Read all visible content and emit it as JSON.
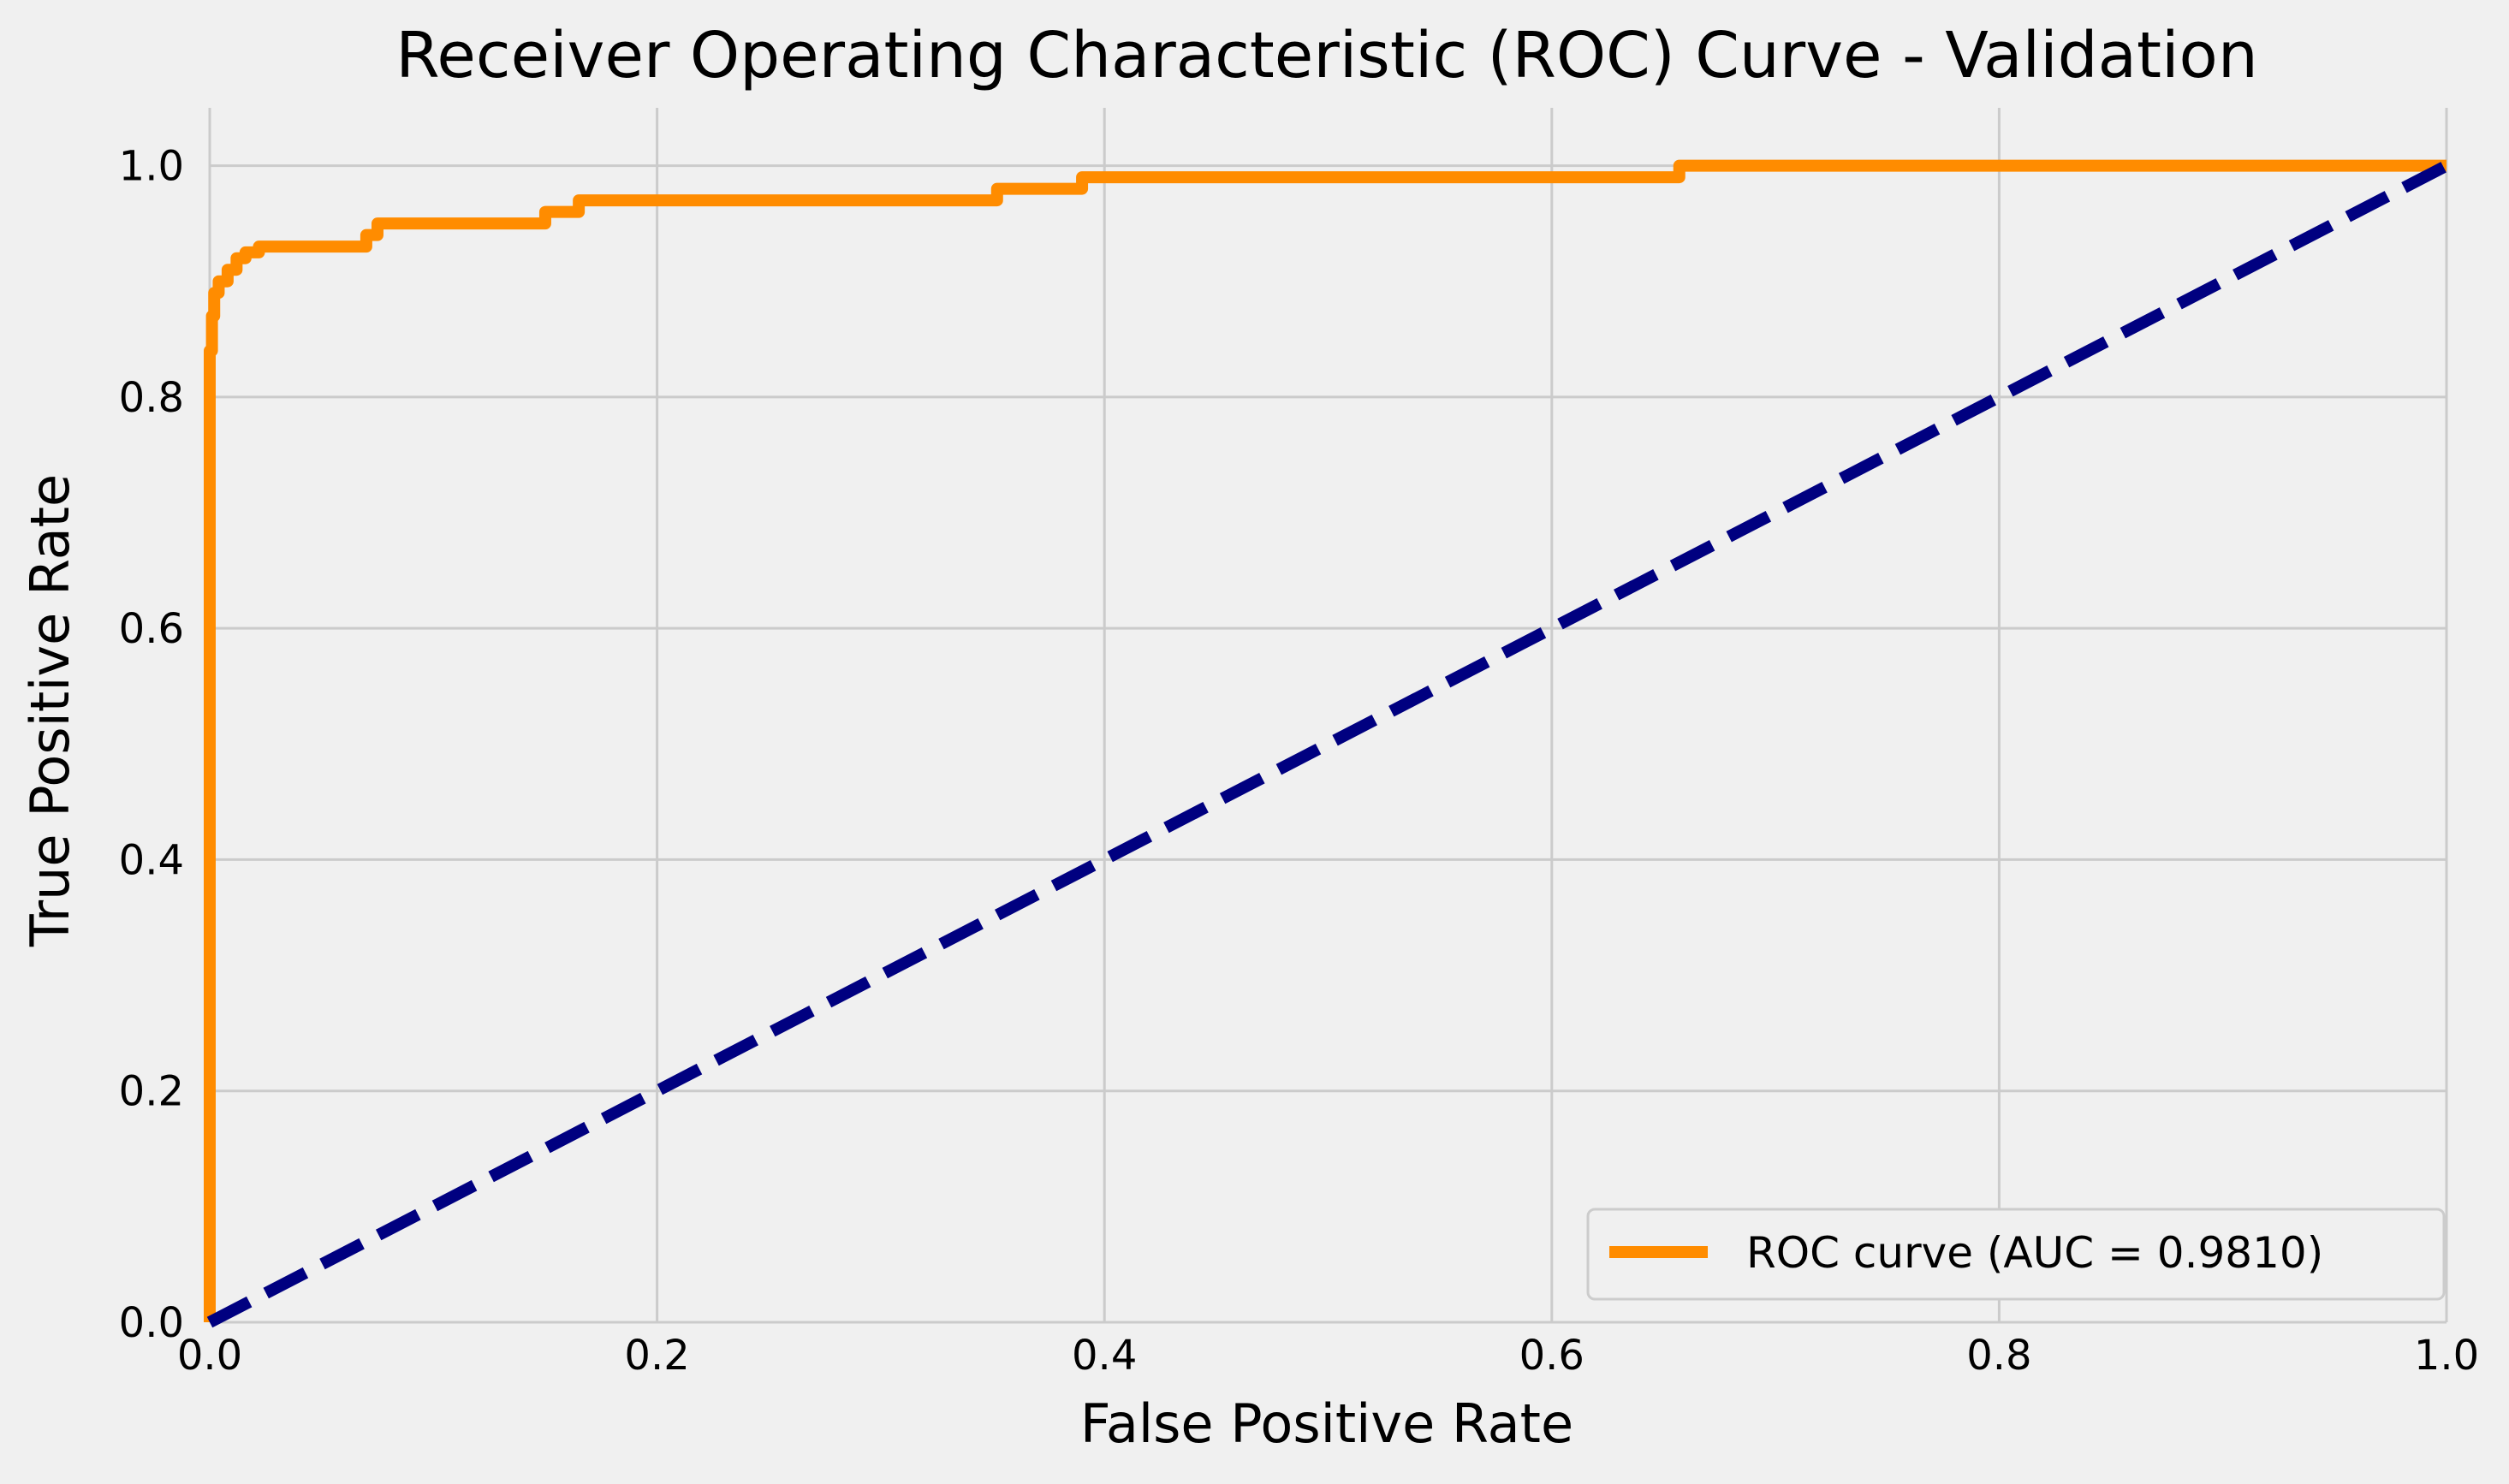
{
  "chart_data": {
    "type": "line",
    "title": "Receiver Operating Characteristic (ROC) Curve - Validation",
    "xlabel": "False Positive Rate",
    "ylabel": "True Positive Rate",
    "xlim": [
      0.0,
      1.0
    ],
    "ylim": [
      0.0,
      1.05
    ],
    "xticks": [
      "0.0",
      "0.2",
      "0.4",
      "0.6",
      "0.8",
      "1.0"
    ],
    "yticks": [
      "0.0",
      "0.2",
      "0.4",
      "0.6",
      "0.8",
      "1.0"
    ],
    "grid": true,
    "legend_position": "lower-right",
    "series": [
      {
        "name": "ROC curve (AUC = 0.9810)",
        "color": "#ff8c00",
        "style": "solid",
        "x": [
          0.0,
          0.0,
          0.001,
          0.001,
          0.002,
          0.002,
          0.004,
          0.004,
          0.008,
          0.008,
          0.012,
          0.012,
          0.016,
          0.016,
          0.022,
          0.022,
          0.07,
          0.07,
          0.075,
          0.075,
          0.15,
          0.15,
          0.165,
          0.165,
          0.352,
          0.352,
          0.39,
          0.39,
          0.657,
          0.657,
          1.0
        ],
        "y": [
          0.0,
          0.84,
          0.84,
          0.87,
          0.87,
          0.89,
          0.89,
          0.9,
          0.9,
          0.91,
          0.91,
          0.92,
          0.92,
          0.925,
          0.925,
          0.93,
          0.93,
          0.94,
          0.94,
          0.95,
          0.95,
          0.96,
          0.96,
          0.97,
          0.97,
          0.98,
          0.98,
          0.99,
          0.99,
          1.0,
          1.0
        ]
      },
      {
        "name": "",
        "color": "#000080",
        "style": "dashed",
        "x": [
          0.0,
          1.0
        ],
        "y": [
          0.0,
          1.0
        ]
      }
    ]
  }
}
